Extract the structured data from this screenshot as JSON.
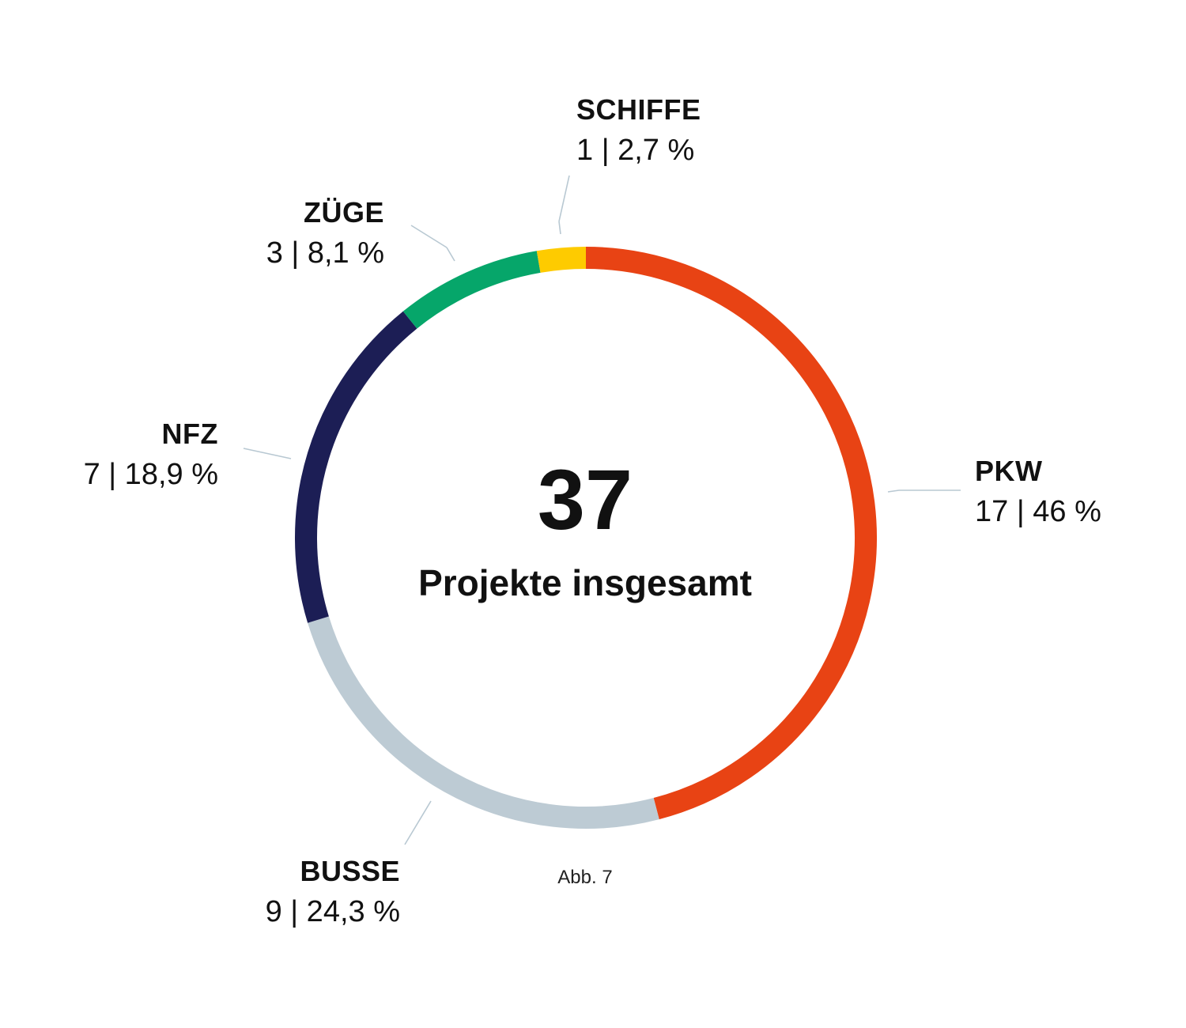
{
  "chart_data": {
    "type": "pie",
    "variant": "donut",
    "center_value": "37",
    "center_label": "Projekte insgesamt",
    "caption": "Abb. 7",
    "start_angle_deg": 0,
    "direction": "clockwise",
    "segments": [
      {
        "key": "pkw",
        "name": "PKW",
        "value": 17,
        "value_label": "17 | 46 %",
        "percent": 46.0,
        "color": "#E84314"
      },
      {
        "key": "busse",
        "name": "BUSSE",
        "value": 9,
        "value_label": "9 | 24,3 %",
        "percent": 24.3,
        "color": "#BDCBD4"
      },
      {
        "key": "nfz",
        "name": "NFZ",
        "value": 7,
        "value_label": "7 | 18,9 %",
        "percent": 18.9,
        "color": "#1C1E55"
      },
      {
        "key": "zuege",
        "name": "ZÜGE",
        "value": 3,
        "value_label": "3 | 8,1 %",
        "percent": 8.1,
        "color": "#06A66A"
      },
      {
        "key": "schiffe",
        "name": "SCHIFFE",
        "value": 1,
        "value_label": "1 | 2,7 %",
        "percent": 2.7,
        "color": "#FECB00"
      }
    ]
  },
  "colors": {
    "leader_line": "#B8C8D2",
    "text": "#111111",
    "background": "#ffffff"
  }
}
